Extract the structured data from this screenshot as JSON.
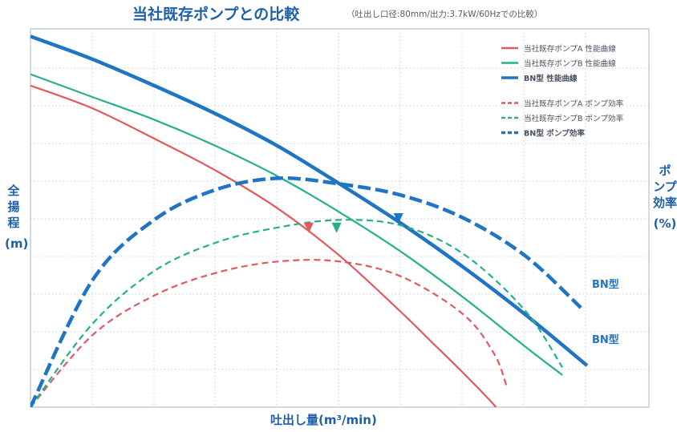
{
  "title": "当社既存ポンプとの比較",
  "subtitle": "（吐出し口径:80mm/出力:3.7kW/60Hzでの比較）",
  "ylabel_left": "全揚程",
  "ylabel_left_unit": "(m)",
  "ylabel_right": "ポンプ効率",
  "ylabel_right_unit": "(%)",
  "xlabel": "吐出し量(m³/min)",
  "curve_labels": [
    "BN型",
    "BN型"
  ],
  "chart_data": {
    "type": "line",
    "title": "当社既存ポンプとの比較",
    "subtitle": "（吐出し口径:80mm/出力:3.7kW/60Hzでの比較）",
    "xlabel": "吐出し量(m³/min)",
    "ylabel": "全揚程(m)",
    "ylabel_right": "ポンプ効率(%)",
    "xlim": [
      0,
      10
    ],
    "ylim": [
      0,
      10
    ],
    "grid": true,
    "legend_position": "top-right",
    "tick_labels": "none",
    "series": [
      {
        "name": "当社既存ポンプA 性能曲線",
        "axis": "left",
        "color": "#e05a5e",
        "style": "solid",
        "x": [
          0,
          1,
          2,
          3,
          4,
          5,
          6,
          6.5,
          7,
          7.5,
          7.75
        ],
        "y": [
          8.5,
          7.9,
          7.1,
          6.25,
          5.25,
          4.0,
          2.5,
          1.7,
          0.9,
          0.05,
          -0.5
        ]
      },
      {
        "name": "当社既存ポンプB 性能曲線",
        "axis": "left",
        "color": "#26b08a",
        "style": "solid",
        "x": [
          0,
          1,
          2,
          3,
          4,
          5,
          6,
          7,
          8,
          8.6
        ],
        "y": [
          8.8,
          8.2,
          7.6,
          6.9,
          6.1,
          5.15,
          4.1,
          2.9,
          1.6,
          0.85
        ]
      },
      {
        "name": "BN型 性能曲線",
        "axis": "left",
        "color": "#1f74c4",
        "style": "solid",
        "x": [
          0,
          1,
          2,
          3,
          4,
          5,
          6,
          7,
          8,
          9
        ],
        "y": [
          9.8,
          9.2,
          8.5,
          7.75,
          6.9,
          5.9,
          4.85,
          3.7,
          2.45,
          1.1
        ]
      },
      {
        "name": "当社既存ポンプA ポンプ効率",
        "axis": "right",
        "color": "#e05a5e",
        "style": "dashed",
        "x": [
          0,
          1,
          2,
          3,
          4,
          5,
          6,
          7,
          7.5,
          7.7
        ],
        "y": [
          0,
          1.9,
          2.95,
          3.55,
          3.85,
          3.85,
          3.45,
          2.45,
          1.4,
          0.55
        ]
      },
      {
        "name": "当社既存ポンプB ポンプ効率",
        "axis": "right",
        "color": "#26b08a",
        "style": "dashed",
        "x": [
          0,
          1,
          2,
          3,
          4,
          5,
          6,
          7,
          8,
          8.6
        ],
        "y": [
          0,
          2.2,
          3.6,
          4.35,
          4.75,
          4.95,
          4.8,
          4.05,
          2.55,
          1.05
        ]
      },
      {
        "name": "BN型 ポンプ効率",
        "axis": "right",
        "color": "#1f74c4",
        "style": "dashed",
        "x": [
          0,
          1,
          2,
          3,
          4,
          5,
          6,
          7,
          8,
          8.9
        ],
        "y": [
          0,
          3.35,
          4.95,
          5.75,
          6.05,
          5.9,
          5.6,
          5.0,
          4.0,
          2.63
        ]
      }
    ]
  }
}
